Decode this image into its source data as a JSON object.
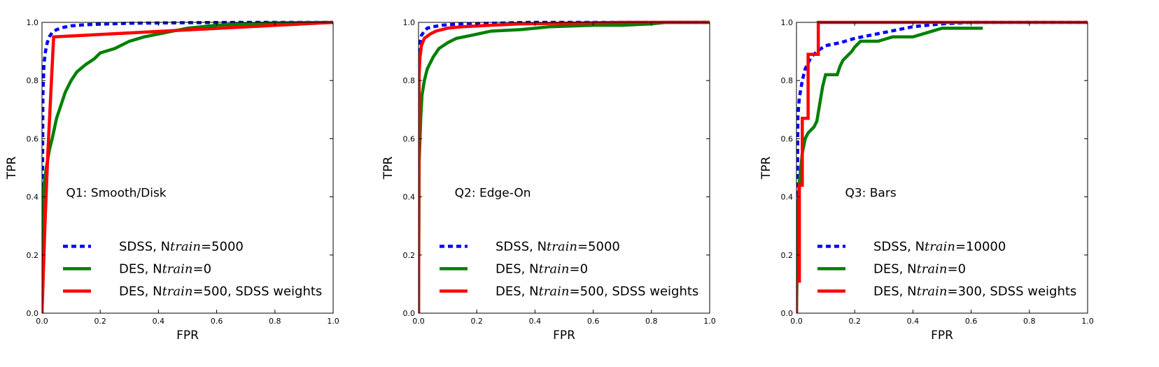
{
  "chart_data": [
    {
      "type": "line",
      "title": "Q1: Smooth/Disk",
      "xlabel": "FPR",
      "ylabel": "TPR",
      "xlim": [
        0,
        1
      ],
      "ylim": [
        0,
        1
      ],
      "xticks": [
        "0.0",
        "0.2",
        "0.4",
        "0.6",
        "0.8",
        "1.0"
      ],
      "yticks": [
        "0.0",
        "0.2",
        "0.4",
        "0.6",
        "0.8",
        "1.0"
      ],
      "legend": {
        "location": "lower-right",
        "entries": [
          {
            "prefix": "SDSS, N",
            "italic": "train",
            "suffix": "=5000"
          },
          {
            "prefix": "DES, N",
            "italic": "train",
            "suffix": "=0"
          },
          {
            "prefix": "DES, N",
            "italic": "train",
            "suffix": "=500, SDSS weights"
          }
        ]
      },
      "series": [
        {
          "name": "SDSS, Ntrain=5000",
          "color": "#0000ff",
          "style": "dashed",
          "x": [
            0,
            0.003,
            0.007,
            0.012,
            0.018,
            0.025,
            0.035,
            0.05,
            0.07,
            0.1,
            0.15,
            0.2,
            0.3,
            0.5,
            0.7,
            1.0
          ],
          "y": [
            0,
            0.75,
            0.86,
            0.9,
            0.93,
            0.95,
            0.965,
            0.975,
            0.982,
            0.988,
            0.992,
            0.994,
            0.997,
            0.999,
            1.0,
            1.0
          ]
        },
        {
          "name": "DES, Ntrain=0",
          "color": "#008000",
          "style": "solid",
          "x": [
            0,
            0.003,
            0.008,
            0.015,
            0.025,
            0.035,
            0.05,
            0.06,
            0.08,
            0.1,
            0.12,
            0.15,
            0.18,
            0.2,
            0.25,
            0.3,
            0.35,
            0.4,
            0.45,
            0.5,
            0.6,
            0.7,
            0.8,
            0.9,
            1.0
          ],
          "y": [
            0,
            0.35,
            0.45,
            0.5,
            0.56,
            0.6,
            0.67,
            0.7,
            0.76,
            0.8,
            0.83,
            0.855,
            0.875,
            0.895,
            0.91,
            0.935,
            0.95,
            0.96,
            0.97,
            0.98,
            0.99,
            0.995,
            0.998,
            0.999,
            1.0
          ]
        },
        {
          "name": "DES, Ntrain=500, SDSS weights",
          "color": "#ff0000",
          "style": "solid",
          "x": [
            0,
            0.01,
            0.02,
            0.03,
            0.04,
            0.42,
            1.0
          ],
          "y": [
            0,
            0.3,
            0.55,
            0.75,
            0.95,
            0.97,
            1.0
          ]
        }
      ]
    },
    {
      "type": "line",
      "title": "Q2: Edge-On",
      "xlabel": "FPR",
      "ylabel": "TPR",
      "xlim": [
        0,
        1
      ],
      "ylim": [
        0,
        1
      ],
      "xticks": [
        "0.0",
        "0.2",
        "0.4",
        "0.6",
        "0.8",
        "1.0"
      ],
      "yticks": [
        "0.0",
        "0.2",
        "0.4",
        "0.6",
        "0.8",
        "1.0"
      ],
      "legend": {
        "location": "lower-right",
        "entries": [
          {
            "prefix": "SDSS, N",
            "italic": "train",
            "suffix": "=5000"
          },
          {
            "prefix": "DES, N",
            "italic": "train",
            "suffix": "=0"
          },
          {
            "prefix": "DES, N",
            "italic": "train",
            "suffix": "=500, SDSS weights"
          }
        ]
      },
      "series": [
        {
          "name": "SDSS, Ntrain=5000",
          "color": "#0000ff",
          "style": "dashed",
          "x": [
            0,
            0.002,
            0.005,
            0.01,
            0.02,
            0.03,
            0.05,
            0.08,
            0.12,
            0.2,
            0.3,
            0.38,
            0.5,
            1.0
          ],
          "y": [
            0,
            0.85,
            0.93,
            0.955,
            0.97,
            0.98,
            0.985,
            0.99,
            0.993,
            0.996,
            0.998,
            1.0,
            1.0,
            1.0
          ]
        },
        {
          "name": "DES, Ntrain=0",
          "color": "#008000",
          "style": "solid",
          "x": [
            0,
            0.002,
            0.005,
            0.008,
            0.012,
            0.02,
            0.03,
            0.05,
            0.07,
            0.1,
            0.13,
            0.18,
            0.25,
            0.35,
            0.45,
            0.6,
            0.7,
            0.8,
            0.85,
            1.0
          ],
          "y": [
            0,
            0.52,
            0.6,
            0.68,
            0.75,
            0.8,
            0.84,
            0.88,
            0.91,
            0.93,
            0.945,
            0.955,
            0.97,
            0.975,
            0.985,
            0.99,
            0.99,
            0.995,
            1.0,
            1.0
          ]
        },
        {
          "name": "DES, Ntrain=500, SDSS weights",
          "color": "#ff0000",
          "style": "solid",
          "x": [
            0,
            0.002,
            0.005,
            0.01,
            0.02,
            0.04,
            0.06,
            0.1,
            0.15,
            0.25,
            0.35,
            0.5,
            0.7,
            1.0
          ],
          "y": [
            0,
            0.82,
            0.88,
            0.92,
            0.945,
            0.96,
            0.97,
            0.98,
            0.985,
            0.99,
            0.995,
            0.997,
            1.0,
            1.0
          ]
        }
      ]
    },
    {
      "type": "line",
      "title": "Q3: Bars",
      "xlabel": "FPR",
      "ylabel": "TPR",
      "xlim": [
        0,
        1
      ],
      "ylim": [
        0,
        1
      ],
      "xticks": [
        "0.0",
        "0.2",
        "0.4",
        "0.6",
        "0.8",
        "1.0"
      ],
      "yticks": [
        "0.0",
        "0.2",
        "0.4",
        "0.6",
        "0.8",
        "1.0"
      ],
      "legend": {
        "location": "lower-right",
        "entries": [
          {
            "prefix": "SDSS, N",
            "italic": "train",
            "suffix": "=10000"
          },
          {
            "prefix": "DES, N",
            "italic": "train",
            "suffix": "=0"
          },
          {
            "prefix": "DES, N",
            "italic": "train",
            "suffix": "=300, SDSS weights"
          }
        ]
      },
      "series": [
        {
          "name": "SDSS, Ntrain=10000",
          "color": "#0000ff",
          "style": "dashed",
          "x": [
            0,
            0.005,
            0.01,
            0.02,
            0.03,
            0.05,
            0.07,
            0.1,
            0.15,
            0.2,
            0.25,
            0.3,
            0.35,
            0.4,
            0.45,
            0.5,
            0.6,
            1.0
          ],
          "y": [
            0,
            0.68,
            0.74,
            0.8,
            0.84,
            0.88,
            0.9,
            0.92,
            0.93,
            0.945,
            0.955,
            0.965,
            0.975,
            0.985,
            0.99,
            0.995,
            1.0,
            1.0
          ]
        },
        {
          "name": "DES, Ntrain=0",
          "color": "#008000",
          "style": "solid",
          "x": [
            0,
            0.005,
            0.01,
            0.015,
            0.02,
            0.03,
            0.04,
            0.06,
            0.07,
            0.08,
            0.09,
            0.1,
            0.14,
            0.15,
            0.16,
            0.17,
            0.19,
            0.2,
            0.22,
            0.28,
            0.33,
            0.4,
            0.45,
            0.5,
            0.64
          ],
          "y": [
            0,
            0.35,
            0.45,
            0.5,
            0.55,
            0.6,
            0.62,
            0.64,
            0.66,
            0.72,
            0.78,
            0.82,
            0.82,
            0.85,
            0.87,
            0.88,
            0.9,
            0.915,
            0.935,
            0.935,
            0.95,
            0.95,
            0.965,
            0.98,
            0.98
          ]
        },
        {
          "name": "DES, Ntrain=300, SDSS weights",
          "color": "#ff0000",
          "style": "solid",
          "x": [
            0,
            0.0,
            0.01,
            0.01,
            0.02,
            0.02,
            0.04,
            0.04,
            0.075,
            0.075,
            1.0
          ],
          "y": [
            0,
            0.11,
            0.11,
            0.44,
            0.44,
            0.67,
            0.67,
            0.89,
            0.89,
            1.0,
            1.0
          ]
        }
      ]
    }
  ]
}
